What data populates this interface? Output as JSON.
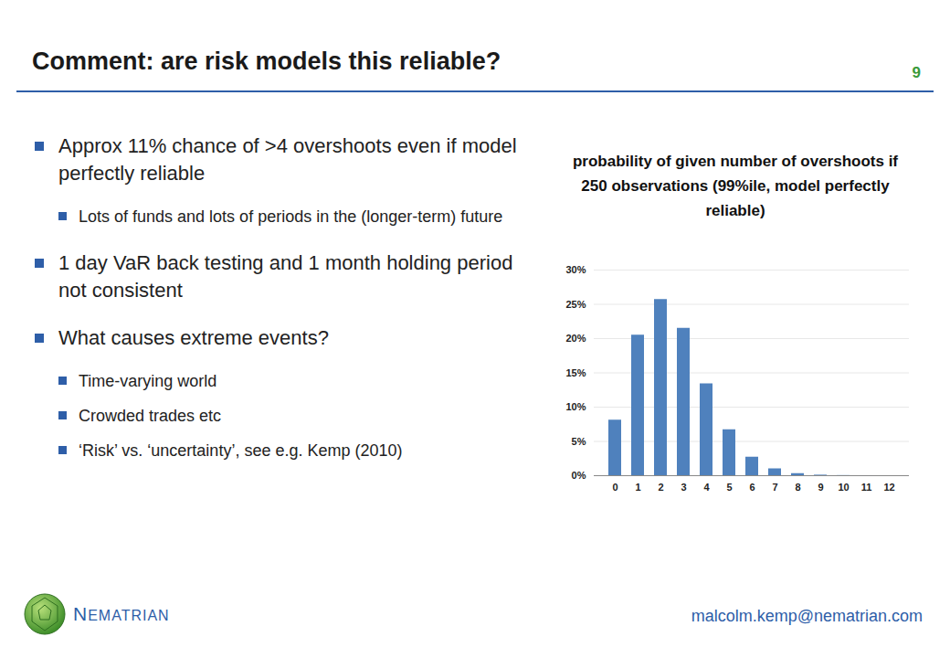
{
  "slide": {
    "title": "Comment: are risk models this reliable?",
    "page_number": "9",
    "bullets": [
      {
        "text": "Approx 11% chance of >4 overshoots even if model perfectly reliable",
        "sub": [
          "Lots of funds and lots of periods in the (longer-term) future"
        ]
      },
      {
        "text": "1 day VaR back testing and 1 month holding period not consistent",
        "sub": []
      },
      {
        "text": "What causes extreme events?",
        "sub": [
          "Time-varying world",
          "Crowded trades etc",
          "‘Risk’ vs. ‘uncertainty’, see e.g. Kemp (2010)"
        ]
      }
    ],
    "logo_text": "NEMATRIAN",
    "footer": "malcolm.kemp@nematrian.com"
  },
  "chart_data": {
    "type": "bar",
    "title": "probability of given number of overshoots if 250 observations (99%ile, model perfectly reliable)",
    "categories": [
      "0",
      "1",
      "2",
      "3",
      "4",
      "5",
      "6",
      "7",
      "8",
      "9",
      "10",
      "11",
      "12"
    ],
    "values": [
      8.1,
      20.5,
      25.7,
      21.5,
      13.4,
      6.7,
      2.7,
      1.0,
      0.3,
      0.08,
      0.02,
      0.004,
      0.001
    ],
    "color": "#4f81bd",
    "ylim": [
      0,
      30
    ],
    "yticks": [
      {
        "value": 0,
        "label": "0%"
      },
      {
        "value": 5,
        "label": "5%"
      },
      {
        "value": 10,
        "label": "10%"
      },
      {
        "value": 15,
        "label": "15%"
      },
      {
        "value": 20,
        "label": "20%"
      },
      {
        "value": 25,
        "label": "25%"
      },
      {
        "value": 30,
        "label": "30%"
      }
    ],
    "grid": true
  }
}
